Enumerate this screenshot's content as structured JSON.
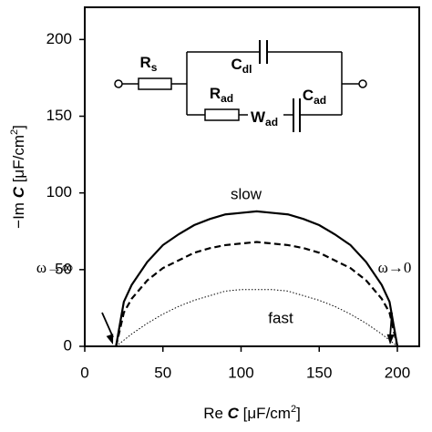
{
  "chart_data": {
    "type": "line",
    "xlabel": [
      "Re ",
      "C",
      " [μF/cm",
      "2",
      "]"
    ],
    "ylabel": [
      "−Im ",
      "C",
      " [μF/cm",
      "2",
      "]"
    ],
    "x": [
      20,
      25,
      30,
      40,
      50,
      60,
      70,
      80,
      90,
      100,
      110,
      120,
      130,
      140,
      150,
      160,
      170,
      180,
      190,
      195,
      200
    ],
    "series": [
      {
        "color": "#000",
        "dash": "solid",
        "values": [
          0,
          29,
          40,
          55,
          66,
          73,
          79,
          83,
          86,
          87,
          88,
          87,
          86,
          83,
          79,
          73,
          66,
          55,
          40,
          29,
          0
        ]
      },
      {
        "color": "#000",
        "dash": "dashed",
        "values": [
          0,
          22,
          31,
          43,
          51,
          56,
          61,
          64,
          66,
          67,
          68,
          67,
          66,
          64,
          61,
          56,
          51,
          43,
          31,
          22,
          0
        ]
      },
      {
        "color": "#000",
        "dash": "dotted",
        "values": [
          0,
          4,
          8,
          15,
          21,
          26,
          30,
          33,
          36,
          37,
          37,
          37,
          36,
          33,
          30,
          26,
          21,
          15,
          8,
          4,
          0
        ]
      }
    ],
    "xlim": [
      0,
      214
    ],
    "ylim": [
      0,
      221
    ],
    "xticks": [
      0,
      50,
      100,
      150,
      200
    ],
    "yticks": [
      0,
      50,
      100,
      150,
      200
    ],
    "annotations": [
      "slow",
      "fast",
      "ω→∞",
      "ω→0"
    ],
    "circuit": [
      {
        "main": "R",
        "sub": "s"
      },
      {
        "main": "C",
        "sub": "dl"
      },
      {
        "main": "R",
        "sub": "ad"
      },
      {
        "main": "W",
        "sub": "ad"
      },
      {
        "main": "C",
        "sub": "ad"
      }
    ]
  }
}
